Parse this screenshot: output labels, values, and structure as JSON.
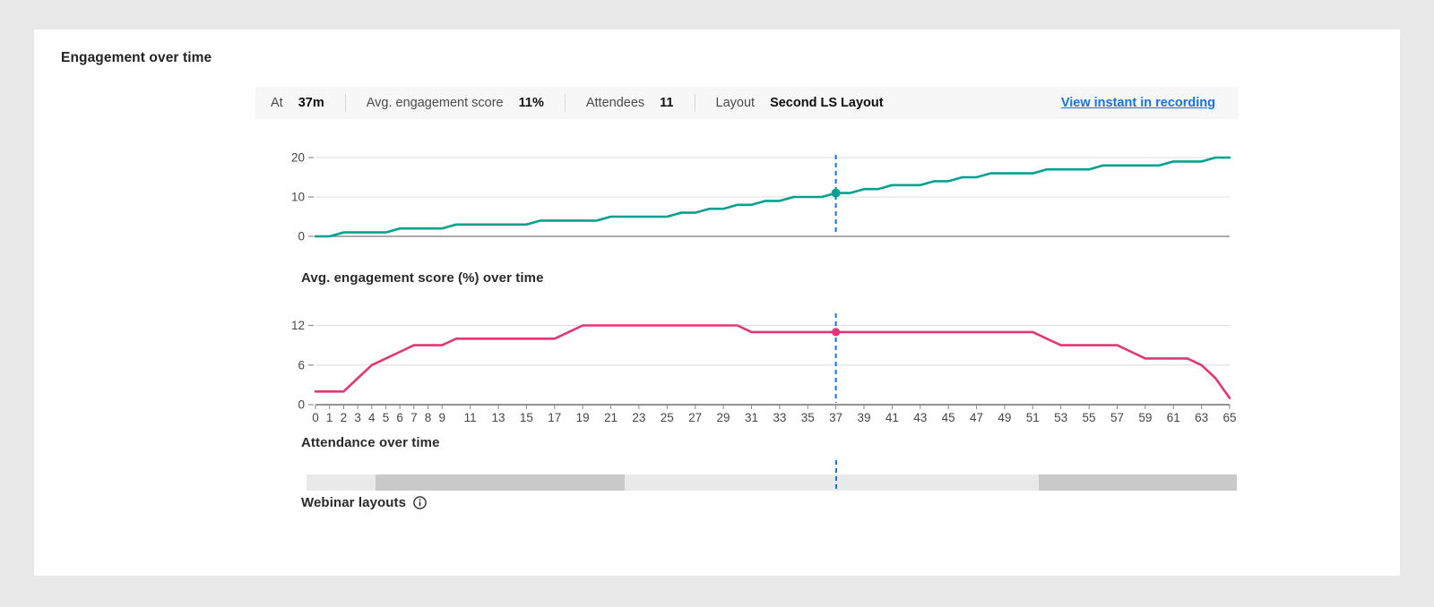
{
  "page": {
    "background": "#e8e8e8",
    "card_background": "#ffffff"
  },
  "header": {
    "title": "Engagement over time"
  },
  "stats_bar": {
    "background": "#f7f7f7",
    "items": [
      {
        "label": "At",
        "value": "37m"
      },
      {
        "label": "Avg. engagement score",
        "value": "11%"
      },
      {
        "label": "Attendees",
        "value": "11"
      },
      {
        "label": "Layout",
        "value": "Second LS Layout"
      }
    ],
    "link_label": "View instant in recording",
    "link_color": "#1473e6"
  },
  "instant": {
    "minute": 37,
    "marker_color": "#1473e6"
  },
  "chart_data": [
    {
      "id": "avg_engagement_score",
      "type": "line",
      "caption": "Avg. engagement score (%) over time",
      "color": "#00a28f",
      "x_range": [
        0,
        65
      ],
      "ylim": [
        0,
        20
      ],
      "yticks": [
        0,
        10,
        20
      ],
      "grid": true,
      "legend": "none",
      "values": [
        0,
        0,
        1,
        1,
        1,
        1,
        2,
        2,
        2,
        2,
        3,
        3,
        3,
        3,
        3,
        3,
        4,
        4,
        4,
        4,
        4,
        5,
        5,
        5,
        5,
        5,
        6,
        6,
        7,
        7,
        8,
        8,
        9,
        9,
        10,
        10,
        10,
        11,
        11,
        12,
        12,
        13,
        13,
        13,
        14,
        14,
        15,
        15,
        16,
        16,
        16,
        16,
        17,
        17,
        17,
        17,
        18,
        18,
        18,
        18,
        18,
        19,
        19,
        19,
        20,
        20
      ],
      "marker_point": {
        "x": 37,
        "y": 11
      }
    },
    {
      "id": "attendance",
      "type": "line",
      "caption": "Attendance over time",
      "color": "#e33577",
      "x_range": [
        0,
        65
      ],
      "ylim": [
        0,
        12
      ],
      "yticks": [
        0,
        6,
        12
      ],
      "xticks": [
        0,
        1,
        2,
        3,
        4,
        5,
        6,
        7,
        8,
        9,
        11,
        13,
        15,
        17,
        19,
        21,
        23,
        25,
        27,
        29,
        31,
        33,
        35,
        37,
        39,
        41,
        43,
        45,
        47,
        49,
        51,
        53,
        55,
        57,
        59,
        61,
        63,
        65
      ],
      "grid": true,
      "legend": "none",
      "values": [
        2,
        2,
        2,
        4,
        6,
        7,
        8,
        9,
        9,
        9,
        10,
        10,
        10,
        10,
        10,
        10,
        10,
        10,
        11,
        12,
        12,
        12,
        12,
        12,
        12,
        12,
        12,
        12,
        12,
        12,
        12,
        11,
        11,
        11,
        11,
        11,
        11,
        11,
        11,
        11,
        11,
        11,
        11,
        11,
        11,
        11,
        11,
        11,
        11,
        11,
        11,
        11,
        10,
        9,
        9,
        9,
        9,
        9,
        8,
        7,
        7,
        7,
        7,
        6,
        4,
        1
      ],
      "marker_point": {
        "x": 37,
        "y": 11
      }
    },
    {
      "id": "webinar_layouts",
      "type": "timeline",
      "caption": "Webinar layouts",
      "segments": [
        {
          "width_pct": 7.4,
          "shade": "#e9e9e9"
        },
        {
          "width_pct": 26.8,
          "shade": "#c9c9c9"
        },
        {
          "width_pct": 44.5,
          "shade": "#e9e9e9"
        },
        {
          "width_pct": 21.3,
          "shade": "#c9c9c9"
        }
      ]
    }
  ]
}
